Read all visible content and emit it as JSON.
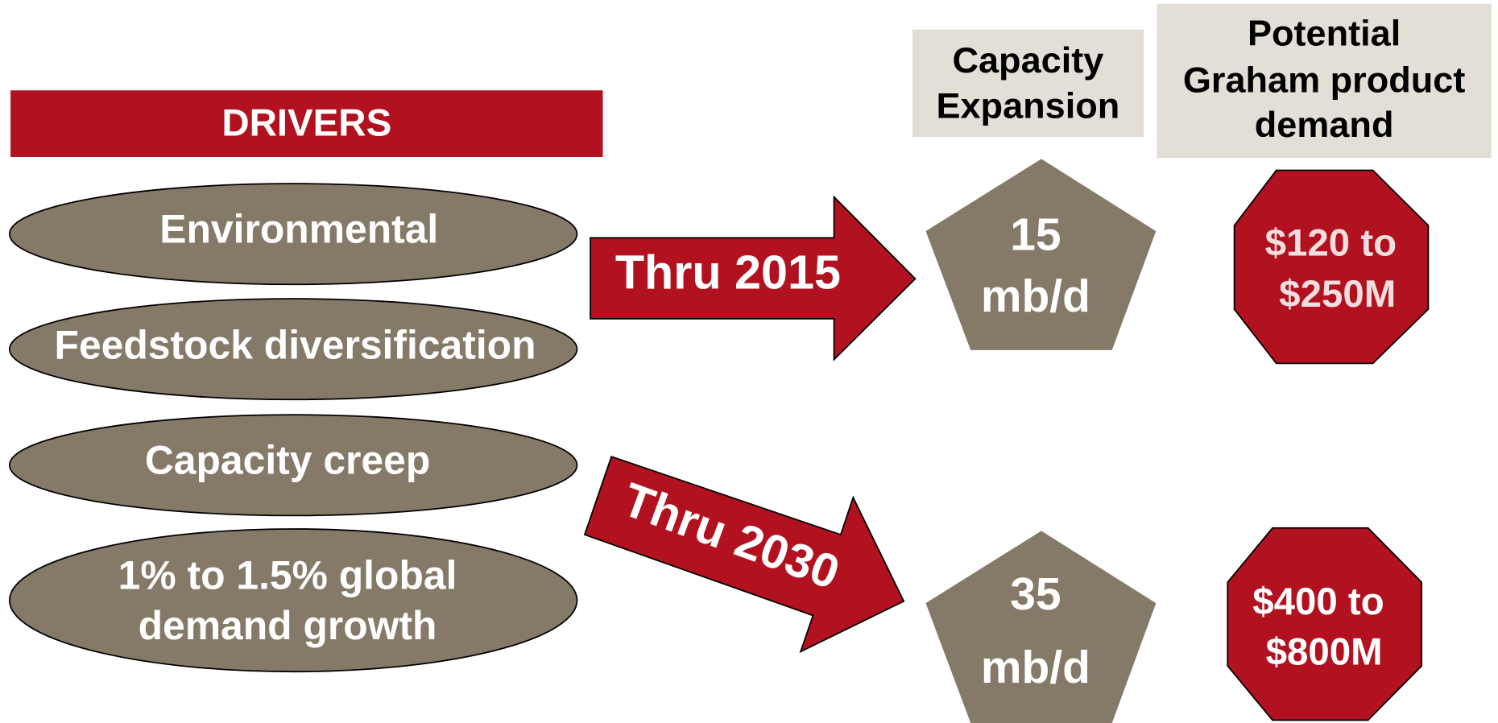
{
  "header": {
    "title": "DRIVERS"
  },
  "drivers": [
    {
      "lines": [
        "Environmental"
      ]
    },
    {
      "lines": [
        "Feedstock diversification"
      ]
    },
    {
      "lines": [
        "Capacity creep"
      ]
    },
    {
      "lines": [
        "1% to 1.5% global",
        "demand growth"
      ]
    }
  ],
  "columns": [
    {
      "lines": [
        "Capacity",
        "Expansion"
      ]
    },
    {
      "lines": [
        "Potential",
        "Graham product",
        "demand"
      ]
    }
  ],
  "horizons": [
    {
      "label": "Thru 2015",
      "capacity": [
        "15",
        "mb/d"
      ],
      "demand": [
        "$120 to",
        "$250M"
      ]
    },
    {
      "label": "Thru 2030",
      "capacity": [
        "35",
        "mb/d"
      ],
      "demand": [
        "$400 to",
        "$800M"
      ]
    }
  ]
}
